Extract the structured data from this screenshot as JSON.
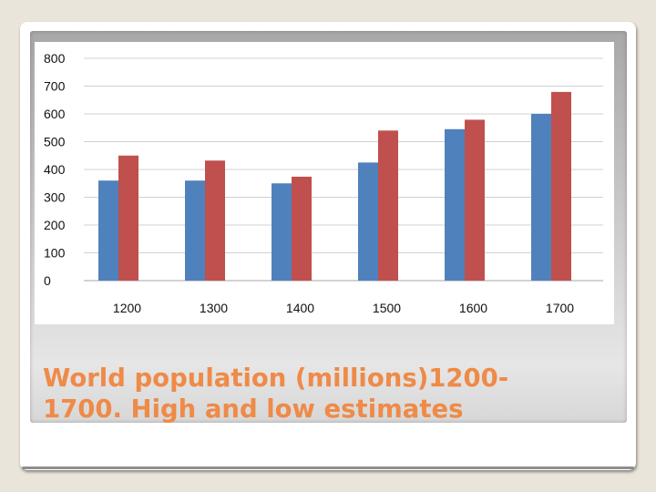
{
  "slide": {
    "caption_line1": "World population (millions)1200-",
    "caption_line2": "1700. High and low estimates",
    "caption_color": "#ef8a47"
  },
  "chart_data": {
    "type": "bar",
    "title": "",
    "xlabel": "",
    "ylabel": "",
    "categories": [
      "1200",
      "1300",
      "1400",
      "1500",
      "1600",
      "1700"
    ],
    "series": [
      {
        "color": "#4f81bd",
        "values": [
          360,
          360,
          350,
          425,
          545,
          600
        ]
      },
      {
        "color": "#c0504d",
        "values": [
          450,
          432,
          374,
          540,
          579,
          679
        ]
      }
    ],
    "ylim": [
      0,
      800
    ],
    "yticks": [
      "0",
      "100",
      "200",
      "300",
      "400",
      "500",
      "600",
      "700",
      "800"
    ],
    "grid": true,
    "legend": "none"
  }
}
